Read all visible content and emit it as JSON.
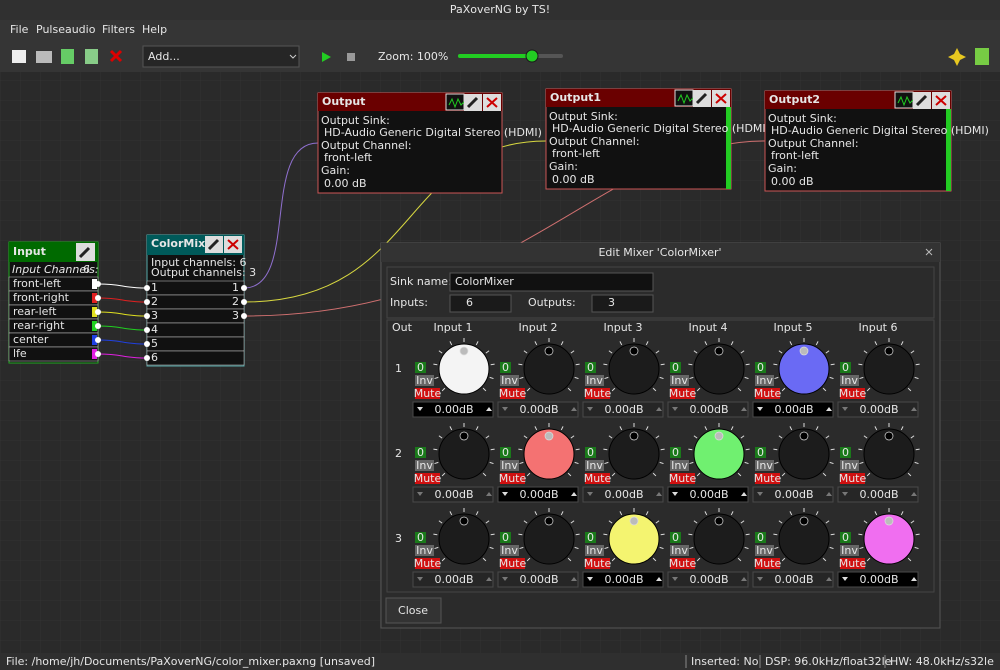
{
  "window": {
    "title": "PaXoverNG by TS!"
  },
  "menu": [
    "File",
    "Pulseaudio",
    "Filters",
    "Help"
  ],
  "toolbar": {
    "add_combo": "Add...",
    "zoom": "Zoom: 100%"
  },
  "nodes": {
    "input": {
      "title": "Input",
      "channels_label": "Input Channels:",
      "channels": "6",
      "ports": [
        {
          "name": "front-left",
          "color": "#ffffff"
        },
        {
          "name": "front-right",
          "color": "#e02020"
        },
        {
          "name": "rear-left",
          "color": "#e0e020"
        },
        {
          "name": "rear-right",
          "color": "#20d020"
        },
        {
          "name": "center",
          "color": "#2040e0"
        },
        {
          "name": "lfe",
          "color": "#e020e0"
        }
      ]
    },
    "mixer": {
      "title": "ColorMix",
      "input_channels": "Input channels: 6",
      "output_channels": "Output channels: 3",
      "inputs": [
        "1",
        "2",
        "3",
        "4",
        "5",
        "6"
      ],
      "outputs": [
        "1",
        "2",
        "3"
      ]
    },
    "outputs": [
      {
        "title": "Output",
        "sink_label": "Output Sink:",
        "sink": "HD-Audio Generic Digital Stereo (HDMI)",
        "channel_label": "Output Channel:",
        "channel": "front-left",
        "gain_label": "Gain:",
        "gain": "0.00 dB"
      },
      {
        "title": "Output1",
        "sink_label": "Output Sink:",
        "sink": "HD-Audio Generic Digital Stereo (HDMI)",
        "channel_label": "Output Channel:",
        "channel": "front-left",
        "gain_label": "Gain:",
        "gain": "0.00 dB"
      },
      {
        "title": "Output2",
        "sink_label": "Output Sink:",
        "sink": "HD-Audio Generic Digital Stereo (HDMI)",
        "channel_label": "Output Channel:",
        "channel": "front-left",
        "gain_label": "Gain:",
        "gain": "0.00 dB"
      }
    ]
  },
  "dialog": {
    "title": "Edit Mixer 'ColorMixer'",
    "sink_label": "Sink name:",
    "sink": "ColorMixer",
    "inputs_label": "Inputs:",
    "inputs": "6",
    "outputs_label": "Outputs:",
    "outputs": "3",
    "out_header": "Out",
    "columns": [
      "Input 1",
      "Input 2",
      "Input 3",
      "Input 4",
      "Input 5",
      "Input 6"
    ],
    "rows": [
      {
        "label": "1",
        "cells": [
          {
            "count": "0",
            "inv": "Inv",
            "mute": "Mute",
            "gain": "0.00dB",
            "color": "#f4f4f4"
          },
          {
            "count": "0",
            "inv": "Inv",
            "mute": "Mute",
            "gain": "0.00dB"
          },
          {
            "count": "0",
            "inv": "Inv",
            "mute": "Mute",
            "gain": "0.00dB"
          },
          {
            "count": "0",
            "inv": "Inv",
            "mute": "Mute",
            "gain": "0.00dB"
          },
          {
            "count": "0",
            "inv": "Inv",
            "mute": "Mute",
            "gain": "0.00dB",
            "color": "#6a6af4"
          },
          {
            "count": "0",
            "inv": "Inv",
            "mute": "Mute",
            "gain": "0.00dB"
          }
        ]
      },
      {
        "label": "2",
        "cells": [
          {
            "count": "0",
            "inv": "Inv",
            "mute": "Mute",
            "gain": "0.00dB"
          },
          {
            "count": "0",
            "inv": "Inv",
            "mute": "Mute",
            "gain": "0.00dB",
            "color": "#f47272"
          },
          {
            "count": "0",
            "inv": "Inv",
            "mute": "Mute",
            "gain": "0.00dB"
          },
          {
            "count": "0",
            "inv": "Inv",
            "mute": "Mute",
            "gain": "0.00dB",
            "color": "#70f070"
          },
          {
            "count": "0",
            "inv": "Inv",
            "mute": "Mute",
            "gain": "0.00dB"
          },
          {
            "count": "0",
            "inv": "Inv",
            "mute": "Mute",
            "gain": "0.00dB"
          }
        ]
      },
      {
        "label": "3",
        "cells": [
          {
            "count": "0",
            "inv": "Inv",
            "mute": "Mute",
            "gain": "0.00dB"
          },
          {
            "count": "0",
            "inv": "Inv",
            "mute": "Mute",
            "gain": "0.00dB"
          },
          {
            "count": "0",
            "inv": "Inv",
            "mute": "Mute",
            "gain": "0.00dB",
            "color": "#f4f470"
          },
          {
            "count": "0",
            "inv": "Inv",
            "mute": "Mute",
            "gain": "0.00dB"
          },
          {
            "count": "0",
            "inv": "Inv",
            "mute": "Mute",
            "gain": "0.00dB"
          },
          {
            "count": "0",
            "inv": "Inv",
            "mute": "Mute",
            "gain": "0.00dB",
            "color": "#f06ef0"
          }
        ]
      }
    ],
    "close": "Close"
  },
  "status": {
    "file": "File: /home/jh/Documents/PaXoverNG/color_mixer.paxng [unsaved]",
    "inserted": "Inserted: No",
    "dsp": "DSP: 96.0kHz/float32le",
    "hw": "HW: 48.0kHz/s32le"
  }
}
